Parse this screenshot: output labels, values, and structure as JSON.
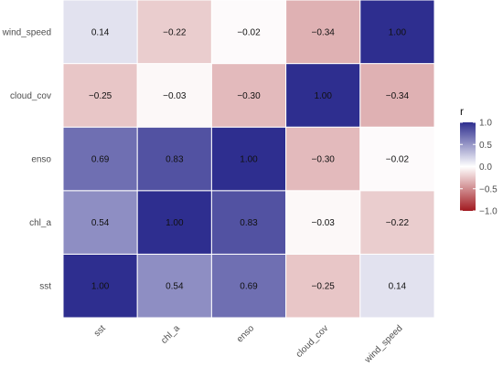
{
  "chart_data": {
    "type": "heatmap",
    "x_categories": [
      "sst",
      "chl_a",
      "enso",
      "cloud_cov",
      "wind_speed"
    ],
    "y_categories": [
      "sst",
      "chl_a",
      "enso",
      "cloud_cov",
      "wind_speed"
    ],
    "matrix": [
      [
        1.0,
        0.54,
        0.69,
        -0.25,
        0.14
      ],
      [
        0.54,
        1.0,
        0.83,
        -0.03,
        -0.22
      ],
      [
        0.69,
        0.83,
        1.0,
        -0.3,
        -0.02
      ],
      [
        -0.25,
        -0.03,
        -0.3,
        1.0,
        -0.34
      ],
      [
        0.14,
        -0.22,
        -0.02,
        -0.34,
        1.0
      ]
    ],
    "value_labels": [
      [
        "1.00",
        "0.54",
        "0.69",
        "−0.25",
        "0.14"
      ],
      [
        "0.54",
        "1.00",
        "0.83",
        "−0.03",
        "−0.22"
      ],
      [
        "0.69",
        "0.83",
        "1.00",
        "−0.30",
        "−0.02"
      ],
      [
        "−0.25",
        "−0.03",
        "−0.30",
        "1.00",
        "−0.34"
      ],
      [
        "0.14",
        "−0.22",
        "−0.02",
        "−0.34",
        "1.00"
      ]
    ],
    "color_range": [
      -1.0,
      1.0
    ],
    "legend": {
      "title": "r",
      "ticks": [
        1.0,
        0.5,
        0.0,
        -0.5,
        -1.0
      ],
      "tick_labels": [
        "1.0",
        "0.5",
        "0.0",
        "−0.5",
        "−1.0"
      ],
      "placement": "right"
    },
    "colors": {
      "low": "#a11a20",
      "mid": "#ffffff",
      "high": "#2e2e8f"
    },
    "grid": false
  }
}
